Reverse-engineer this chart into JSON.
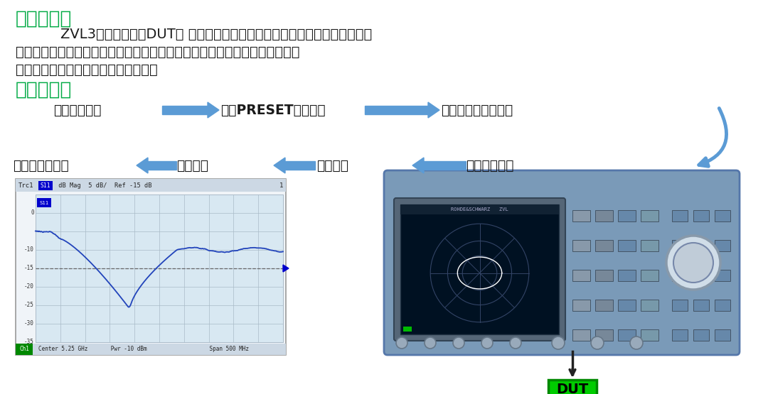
{
  "bg_color": "#ffffff",
  "title_green": "反射测量：",
  "title_green2": "测试步骤：",
  "green_color": "#00aa44",
  "text_color": "#1a1a1a",
  "arrow_color": "#5B9BD5",
  "body_text_line1": "    ZVL3向被测设备（DUT） 的输入端口发射一个激励信号，并对反射波进行测",
  "body_text_line2": "量。通过众多轨迹格式来表示和显示结果，取决于要从这些数据获得的信息。",
  "body_text_line3": "进行反射测量只需使用一个测试端口。",
  "flow_row1": [
    "连接被测器件",
    "进入PRESET出厂预设",
    "参数和扫描范围选择"
  ],
  "flow_row2": [
    "保存和打印数据",
    "数据分析",
    "数据分析",
    "仪器短路校准"
  ],
  "dut_label": "DUT",
  "dut_bg": "#00cc00",
  "chart_plot_bg": "#dce8f0",
  "chart_frame_bg": "#e8eef5",
  "na_body_color": "#7090b0",
  "na_screen_bg": "#001133"
}
